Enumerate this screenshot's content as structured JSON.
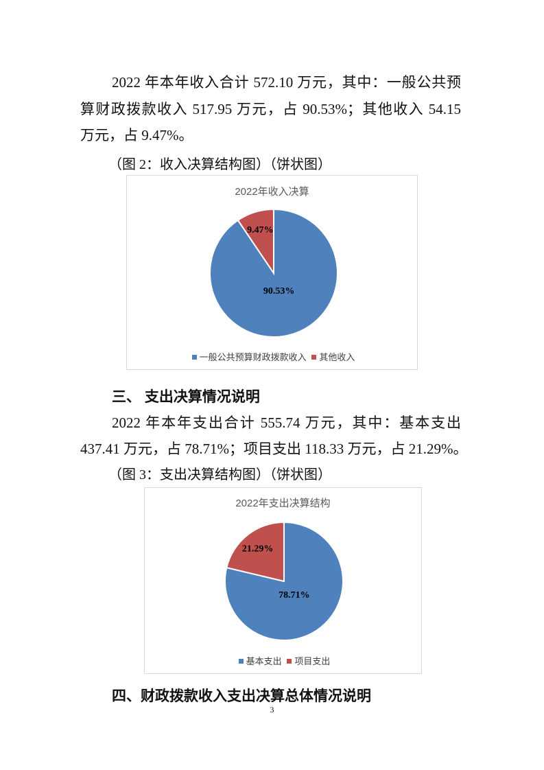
{
  "income_paragraph": {
    "lines": [
      "2022 年本年收入合计 572.10 万元，其中：一般公共预",
      "算财政拨款收入 517.95 万元，占 90.53%；其他收入 54.15",
      "万元，占 9.47%。"
    ]
  },
  "figure2_caption": "（图 2：收入决算结构图）（饼状图）",
  "section3_heading": "三、 支出决算情况说明",
  "expense_paragraph": {
    "lines": [
      "2022 年本年支出合计 555.74 万元，其中：基本支出",
      "437.41 万元，占 78.71%；项目支出 118.33 万元，占 21.29%。"
    ]
  },
  "figure3_caption": "（图 3：支出决算结构图）（饼状图）",
  "section4_heading": "四、财政拨款收入支出决算总体情况说明",
  "page_number": "3",
  "chart_data": [
    {
      "type": "pie",
      "title": "2022年收入决算",
      "categories": [
        "一般公共预算财政拨款收入",
        "其他收入"
      ],
      "values": [
        90.53,
        9.47
      ],
      "labels": [
        "90.53%",
        "9.47%"
      ],
      "colors": [
        "#4f81bd",
        "#c0504d"
      ],
      "legend": "bottom"
    },
    {
      "type": "pie",
      "title": "2022年支出决算结构",
      "categories": [
        "基本支出",
        "项目支出"
      ],
      "values": [
        78.71,
        21.29
      ],
      "labels": [
        "78.71%",
        "21.29%"
      ],
      "colors": [
        "#4f81bd",
        "#c0504d"
      ],
      "legend": "bottom"
    }
  ]
}
